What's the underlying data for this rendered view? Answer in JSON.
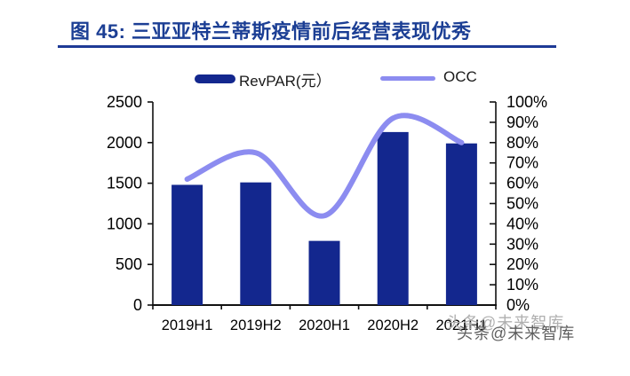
{
  "figure": {
    "title": "图 45:  三亚亚特兰蒂斯疫情前后经营表现优秀",
    "accent_color": "#1B3E94"
  },
  "legend": {
    "revpar_label": "RevPAR(元）",
    "occ_label": "OCC",
    "bar_color": "#13278E",
    "line_color": "#8C8CF0"
  },
  "watermark": {
    "text": "头条@未来智库"
  },
  "chart_data": {
    "type": "bar",
    "subtype": "bar-line combo, dual axis",
    "title": "三亚亚特兰蒂斯疫情前后经营表现优秀",
    "categories": [
      "2019H1",
      "2019H2",
      "2020H1",
      "2020H2",
      "2021H1"
    ],
    "series": [
      {
        "name": "RevPAR(元）",
        "type": "bar",
        "axis": "left",
        "color": "#13278E",
        "values": [
          1480,
          1510,
          790,
          2130,
          1990
        ]
      },
      {
        "name": "OCC",
        "type": "line",
        "axis": "right",
        "color": "#8C8CF0",
        "smooth": true,
        "values_percent": [
          62,
          75,
          44,
          92,
          80
        ]
      }
    ],
    "left_axis": {
      "min": 0,
      "max": 2500,
      "step": 500,
      "tick_labels": [
        "2500",
        "2000",
        "1500",
        "1000",
        "500",
        "0"
      ]
    },
    "right_axis": {
      "min": 0,
      "max": 100,
      "step": 10,
      "tick_labels": [
        "100%",
        "90%",
        "80%",
        "70%",
        "60%",
        "50%",
        "40%",
        "30%",
        "20%",
        "10%",
        "0%"
      ]
    },
    "grid": false,
    "legend_position": "top"
  }
}
